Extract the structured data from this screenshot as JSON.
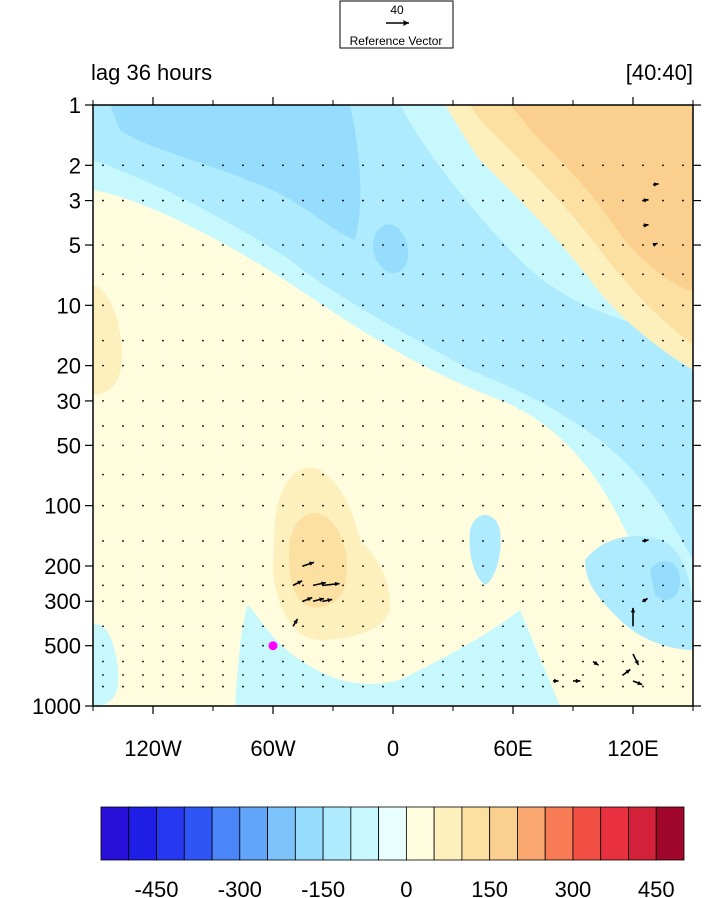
{
  "chart_data": {
    "type": "heatmap",
    "left_title": "lag 36 hours",
    "right_title": "[40:40]",
    "reference_vector": {
      "magnitude": "40",
      "label": "Reference Vector"
    },
    "x_axis": {
      "min": -150,
      "max": 150,
      "ticks": [
        -120,
        -60,
        0,
        60,
        120
      ],
      "tick_labels": [
        "120W",
        "60W",
        "0",
        "60E",
        "120E"
      ]
    },
    "y_axis": {
      "scale": "log",
      "reversed": true,
      "min": 1,
      "max": 1000,
      "ticks": [
        1,
        2,
        3,
        5,
        10,
        20,
        30,
        50,
        100,
        200,
        300,
        500,
        1000
      ],
      "tick_labels": [
        "1",
        "2",
        "3",
        "5",
        "10",
        "20",
        "30",
        "50",
        "100",
        "200",
        "300",
        "500",
        "1000"
      ]
    },
    "colorbar": {
      "colors": [
        "#2a0fd8",
        "#1e1ee6",
        "#2638f0",
        "#2f55f7",
        "#4a86f8",
        "#62a6fb",
        "#7cc3fb",
        "#96dcfd",
        "#aeebfe",
        "#c7f8fe",
        "#e8fffd",
        "#fffdde",
        "#fdf0bd",
        "#fce0a2",
        "#fbcf8e",
        "#f9a76e",
        "#f77c55",
        "#f24f45",
        "#e8303f",
        "#d3213a",
        "#a0072a"
      ],
      "tick_labels": [
        "-450",
        "-300",
        "-150",
        "0",
        "150",
        "300",
        "450"
      ]
    },
    "marker": {
      "lon": -60,
      "pressure": 500,
      "color": "#ff00ff"
    },
    "field_regions": [
      {
        "name": "neg1",
        "level": -50,
        "color": "#c7f8fe"
      },
      {
        "name": "neg2",
        "level": -100,
        "color": "#aeebfe"
      },
      {
        "name": "neg3",
        "level": -150,
        "color": "#96dcfd"
      },
      {
        "name": "pos1",
        "level": 25,
        "color": "#fffdde"
      },
      {
        "name": "pos2",
        "level": 50,
        "color": "#fdf0bd"
      },
      {
        "name": "pos3",
        "level": 100,
        "color": "#fce0a2"
      },
      {
        "name": "pos4",
        "level": 150,
        "color": "#fbcf8e"
      }
    ],
    "vectors": [
      {
        "lon": -45,
        "pressure": 200,
        "u": 12,
        "v": 4
      },
      {
        "lon": -40,
        "pressure": 250,
        "u": 14,
        "v": 3
      },
      {
        "lon": -35,
        "pressure": 250,
        "u": 18,
        "v": 2
      },
      {
        "lon": -45,
        "pressure": 300,
        "u": 10,
        "v": 4
      },
      {
        "lon": -40,
        "pressure": 300,
        "u": 12,
        "v": 3
      },
      {
        "lon": -35,
        "pressure": 300,
        "u": 10,
        "v": 2
      },
      {
        "lon": -50,
        "pressure": 250,
        "u": 10,
        "v": 5
      },
      {
        "lon": -50,
        "pressure": 400,
        "u": 5,
        "v": 8
      },
      {
        "lon": 120,
        "pressure": 400,
        "u": 0,
        "v": 20
      },
      {
        "lon": 120,
        "pressure": 550,
        "u": 6,
        "v": -12
      },
      {
        "lon": 115,
        "pressure": 700,
        "u": 8,
        "v": 6
      },
      {
        "lon": 120,
        "pressure": 750,
        "u": 10,
        "v": -4
      },
      {
        "lon": 100,
        "pressure": 600,
        "u": 6,
        "v": -4
      },
      {
        "lon": 90,
        "pressure": 750,
        "u": 8,
        "v": 0
      },
      {
        "lon": 80,
        "pressure": 750,
        "u": 6,
        "v": 0
      },
      {
        "lon": 125,
        "pressure": 300,
        "u": 5,
        "v": 3
      },
      {
        "lon": 125,
        "pressure": 150,
        "u": 6,
        "v": 1
      },
      {
        "lon": 125,
        "pressure": 3,
        "u": 6,
        "v": 1
      },
      {
        "lon": 130,
        "pressure": 2.5,
        "u": 6,
        "v": 1
      },
      {
        "lon": 125,
        "pressure": 4,
        "u": 6,
        "v": 1
      },
      {
        "lon": 130,
        "pressure": 5,
        "u": 5,
        "v": 2
      }
    ]
  }
}
